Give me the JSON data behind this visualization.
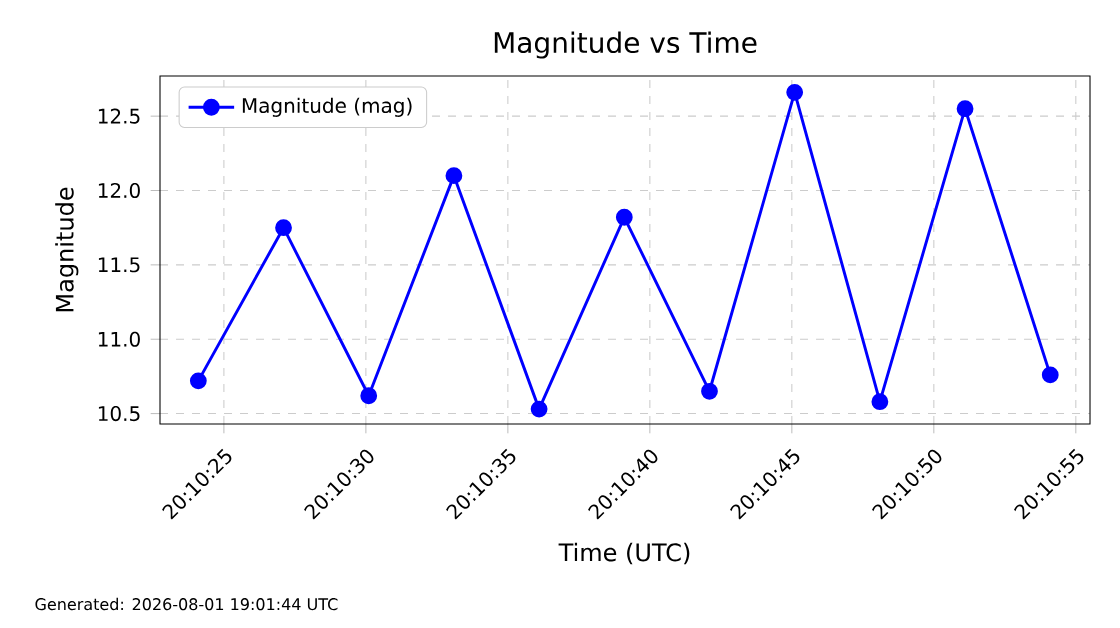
{
  "chart_data": {
    "type": "line",
    "title": "Magnitude vs Time",
    "xlabel": "Time (UTC)",
    "ylabel": "Magnitude",
    "x": [
      20.1733611,
      20.1741944,
      20.1750278,
      20.1758611,
      20.1766944,
      20.1775278,
      20.1783611,
      20.1791944,
      20.1800278,
      20.1808611,
      20.1816944
    ],
    "series": [
      {
        "name": "Magnitude (mag)",
        "color": "#0000ff",
        "values": [
          10.72,
          11.75,
          10.62,
          12.1,
          10.53,
          11.82,
          10.65,
          12.66,
          10.58,
          12.55,
          10.76
        ]
      }
    ],
    "xlim": [
      20.1729861,
      20.1820833
    ],
    "xticks": [
      {
        "value": 20.1736111,
        "label": "20:10:25"
      },
      {
        "value": 20.175,
        "label": "20:10:30"
      },
      {
        "value": 20.1763889,
        "label": "20:10:35"
      },
      {
        "value": 20.1777778,
        "label": "20:10:40"
      },
      {
        "value": 20.1791667,
        "label": "20:10:45"
      },
      {
        "value": 20.1805556,
        "label": "20:10:50"
      },
      {
        "value": 20.1819444,
        "label": "20:10:55"
      }
    ],
    "ylim": [
      10.43,
      12.77
    ],
    "yticks": [
      10.5,
      {
        "value": 11,
        "label": "11.0"
      },
      11.5,
      {
        "value": 12,
        "label": "12.0"
      },
      12.5
    ],
    "grid": true,
    "legend": "top left",
    "marker": "circle",
    "line_style": "solid",
    "annotations": [
      "Generated: 2026-08-01 19:01:44 UTC"
    ]
  }
}
